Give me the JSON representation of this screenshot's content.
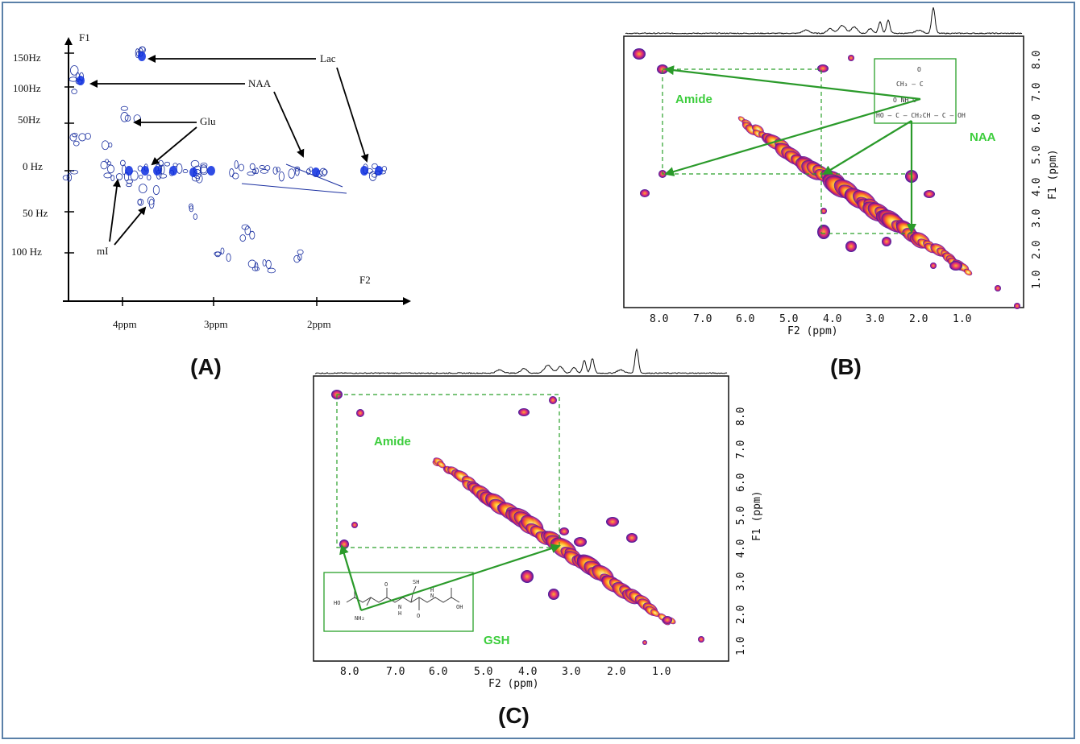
{
  "figure": {
    "panel_labels": [
      "(A)",
      "(B)",
      "(C)"
    ]
  },
  "panel_a": {
    "f1_label": "F1",
    "f2_label": "F2",
    "y_ticks": [
      "150Hz",
      "100Hz",
      "50Hz",
      "0 Hz",
      "50 Hz",
      "100 Hz"
    ],
    "x_ticks": [
      "4ppm",
      "3ppm",
      "2ppm"
    ],
    "annotations": [
      "Lac",
      "NAA",
      "Glu",
      "mI"
    ],
    "contour_color": "#1a2fa0",
    "peak_color": "#0a2de0"
  },
  "panel_b": {
    "x_axis_title": "F2 (ppm)",
    "y_axis_title": "F1 (ppm)",
    "x_ticks": [
      "8.0",
      "7.0",
      "6.0",
      "5.0",
      "4.0",
      "3.0",
      "2.0",
      "1.0"
    ],
    "y_ticks": [
      "8.0",
      "7.0",
      "6.0",
      "5.0",
      "4.0",
      "3.0",
      "2.0",
      "1.0"
    ],
    "amide_label": "Amide",
    "compound_label": "NAA",
    "structure_text": {
      "line1": "O",
      "line2": "CH₃ – C",
      "line3": "O    NH    O",
      "line4": "HO – C – CH₂CH – C – OH"
    },
    "annotation_color": "#2aa02a"
  },
  "panel_c": {
    "x_axis_title": "F2 (ppm)",
    "y_axis_title": "F1 (ppm)",
    "x_ticks": [
      "8.0",
      "7.0",
      "6.0",
      "5.0",
      "4.0",
      "3.0",
      "2.0",
      "1.0"
    ],
    "y_ticks": [
      "8.0",
      "7.0",
      "6.0",
      "5.0",
      "4.0",
      "3.0",
      "2.0",
      "1.0"
    ],
    "amide_label": "Amide",
    "compound_label": "GSH",
    "structure_text": {
      "sh": "SH",
      "o1": "O",
      "ho": "HO",
      "nh2": "NH₂",
      "n1": "N",
      "h1": "H",
      "n2": "N",
      "h2": "H",
      "oh": "OH",
      "o2": "O"
    },
    "annotation_color": "#2aa02a"
  }
}
